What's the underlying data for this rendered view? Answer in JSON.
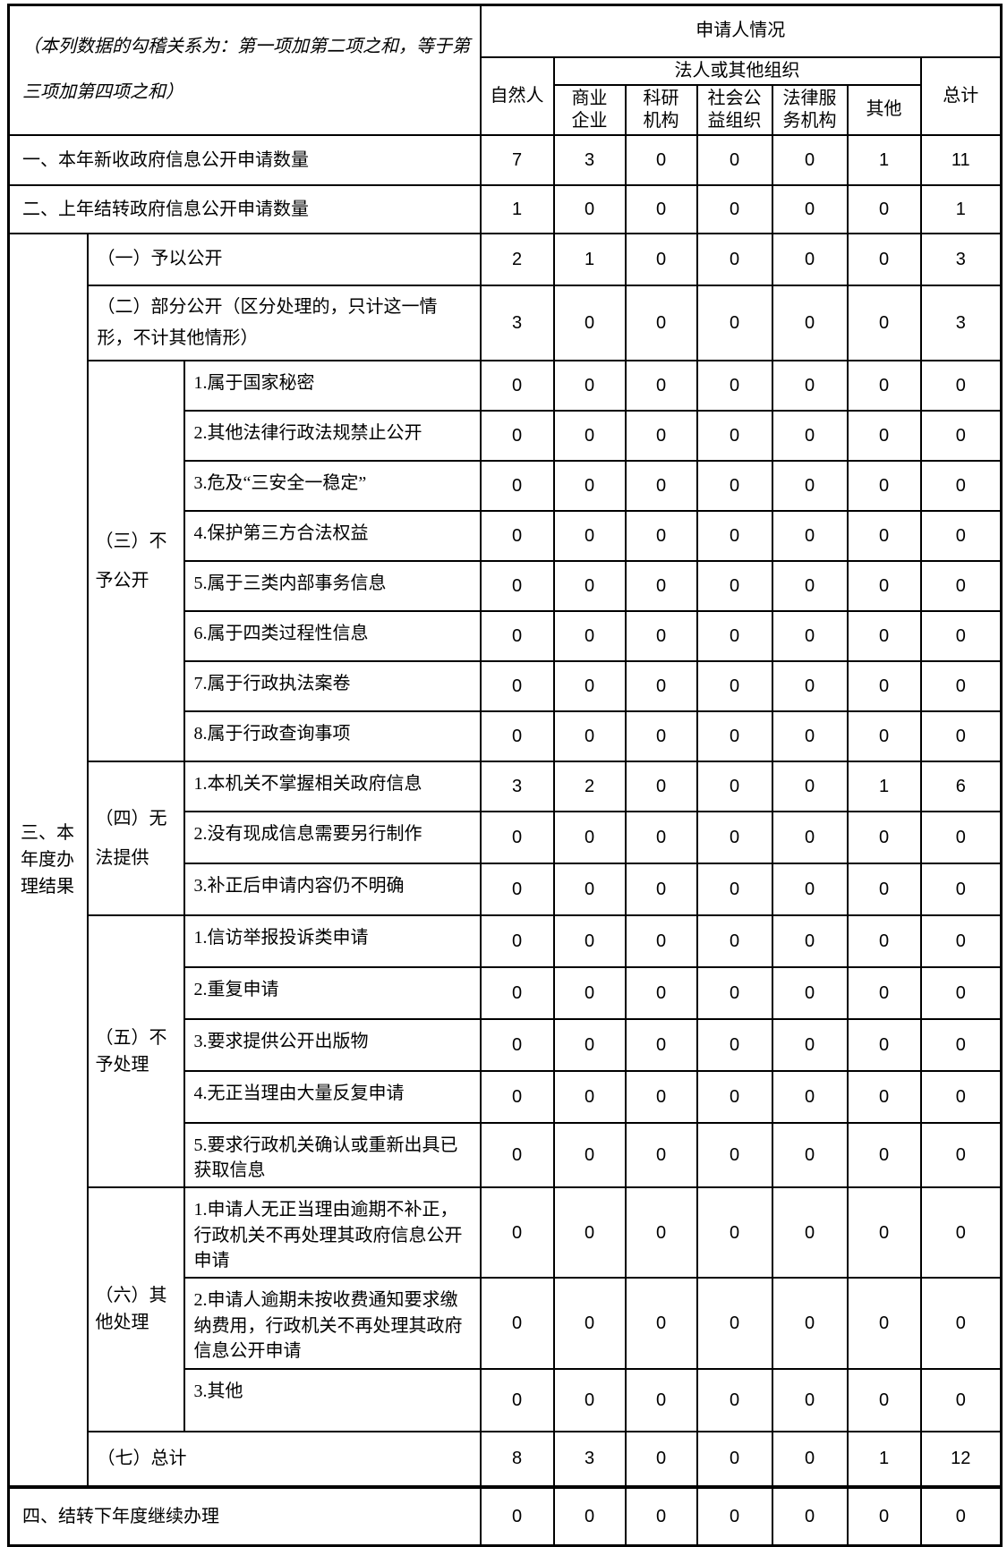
{
  "table": {
    "note": "（本列数据的勾稽关系为：第一项加第二项之和，等于第三项加第四项之和）",
    "header": {
      "applicant": "申请人情况",
      "natural_person": "自然人",
      "legal_or_other_org": "法人或其他组织",
      "commercial": "商业\n企业",
      "research": "科研\n机构",
      "public_welfare": "社会公\n益组织",
      "legal_service": "法律服\n务机构",
      "other": "其他",
      "total": "总计"
    },
    "side": {
      "section3": "三、本\n年度办\n理结果",
      "g3": "（三）不\n予公开",
      "g4": "（四）无\n法提供",
      "g5": "（五）不\n予处理",
      "g6": "（六）其\n他处理"
    },
    "rows": {
      "r1": {
        "label": "一、本年新收政府信息公开申请数量",
        "values": [
          7,
          3,
          0,
          0,
          0,
          1,
          11
        ]
      },
      "r2": {
        "label": "二、上年结转政府信息公开申请数量",
        "values": [
          1,
          0,
          0,
          0,
          0,
          0,
          1
        ]
      },
      "g1": {
        "label": "（一）予以公开",
        "values": [
          2,
          1,
          0,
          0,
          0,
          0,
          3
        ]
      },
      "g2": {
        "label": "（二）部分公开（区分处理的，只计这一情形，不计其他情形）",
        "values": [
          3,
          0,
          0,
          0,
          0,
          0,
          3
        ]
      },
      "g3_1": {
        "label": "1.属于国家秘密",
        "values": [
          0,
          0,
          0,
          0,
          0,
          0,
          0
        ]
      },
      "g3_2": {
        "label": "2.其他法律行政法规禁止公开",
        "values": [
          0,
          0,
          0,
          0,
          0,
          0,
          0
        ]
      },
      "g3_3": {
        "label": "3.危及“三安全一稳定”",
        "values": [
          0,
          0,
          0,
          0,
          0,
          0,
          0
        ]
      },
      "g3_4": {
        "label": "4.保护第三方合法权益",
        "values": [
          0,
          0,
          0,
          0,
          0,
          0,
          0
        ]
      },
      "g3_5": {
        "label": "5.属于三类内部事务信息",
        "values": [
          0,
          0,
          0,
          0,
          0,
          0,
          0
        ]
      },
      "g3_6": {
        "label": "6.属于四类过程性信息",
        "values": [
          0,
          0,
          0,
          0,
          0,
          0,
          0
        ]
      },
      "g3_7": {
        "label": "7.属于行政执法案卷",
        "values": [
          0,
          0,
          0,
          0,
          0,
          0,
          0
        ]
      },
      "g3_8": {
        "label": "8.属于行政查询事项",
        "values": [
          0,
          0,
          0,
          0,
          0,
          0,
          0
        ]
      },
      "g4_1": {
        "label": "1.本机关不掌握相关政府信息",
        "values": [
          3,
          2,
          0,
          0,
          0,
          1,
          6
        ]
      },
      "g4_2": {
        "label": "2.没有现成信息需要另行制作",
        "values": [
          0,
          0,
          0,
          0,
          0,
          0,
          0
        ]
      },
      "g4_3": {
        "label": "3.补正后申请内容仍不明确",
        "values": [
          0,
          0,
          0,
          0,
          0,
          0,
          0
        ]
      },
      "g5_1": {
        "label": "1.信访举报投诉类申请",
        "values": [
          0,
          0,
          0,
          0,
          0,
          0,
          0
        ]
      },
      "g5_2": {
        "label": "2.重复申请",
        "values": [
          0,
          0,
          0,
          0,
          0,
          0,
          0
        ]
      },
      "g5_3": {
        "label": "3.要求提供公开出版物",
        "values": [
          0,
          0,
          0,
          0,
          0,
          0,
          0
        ]
      },
      "g5_4": {
        "label": "4.无正当理由大量反复申请",
        "values": [
          0,
          0,
          0,
          0,
          0,
          0,
          0
        ]
      },
      "g5_5": {
        "label": "5.要求行政机关确认或重新出具已获取信息",
        "values": [
          0,
          0,
          0,
          0,
          0,
          0,
          0
        ]
      },
      "g6_1": {
        "label": "1.申请人无正当理由逾期不补正，行政机关不再处理其政府信息公开申请",
        "values": [
          0,
          0,
          0,
          0,
          0,
          0,
          0
        ]
      },
      "g6_2": {
        "label": "2.申请人逾期未按收费通知要求缴纳费用，行政机关不再处理其政府信息公开申请",
        "values": [
          0,
          0,
          0,
          0,
          0,
          0,
          0
        ]
      },
      "g6_3": {
        "label": "3.其他",
        "values": [
          0,
          0,
          0,
          0,
          0,
          0,
          0
        ]
      },
      "g7": {
        "label": "（七）总计",
        "values": [
          8,
          3,
          0,
          0,
          0,
          1,
          12
        ]
      },
      "r4": {
        "label": "四、结转下年度继续办理",
        "values": [
          0,
          0,
          0,
          0,
          0,
          0,
          0
        ]
      }
    }
  }
}
